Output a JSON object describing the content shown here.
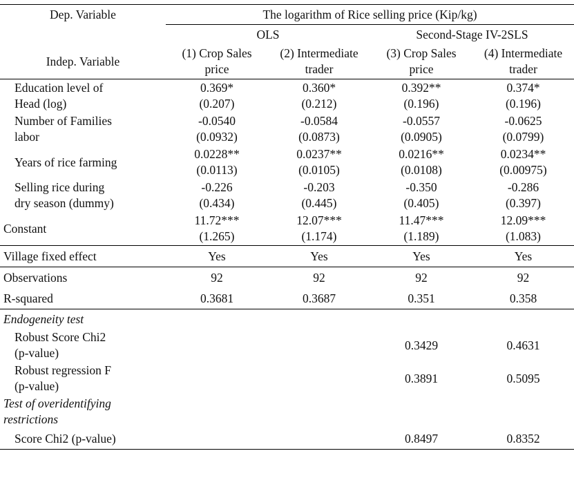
{
  "header": {
    "dep_label": "Dep. Variable",
    "dep_value": "The logarithm of Rice selling price (Kip/kg)",
    "group_ols": "OLS",
    "group_iv": "Second-Stage IV-2SLS",
    "indep_label": "Indep. Variable",
    "columns": [
      {
        "line1": "(1) Crop Sales",
        "line2": "price"
      },
      {
        "line1": "(2) Intermediate",
        "line2": "trader"
      },
      {
        "line1": "(3) Crop Sales",
        "line2": "price"
      },
      {
        "line1": "(4) Intermediate",
        "line2": "trader"
      }
    ]
  },
  "rows": [
    {
      "label1": "Education level of",
      "label2": "Head (log)",
      "coef": [
        "0.369*",
        "0.360*",
        "0.392**",
        "0.374*"
      ],
      "se": [
        "(0.207)",
        "(0.212)",
        "(0.196)",
        "(0.196)"
      ]
    },
    {
      "label1": "Number of Families",
      "label2": "labor",
      "coef": [
        "-0.0540",
        "-0.0584",
        "-0.0557",
        "-0.0625"
      ],
      "se": [
        "(0.0932)",
        "(0.0873)",
        "(0.0905)",
        "(0.0799)"
      ]
    },
    {
      "label1": "Years of rice farming",
      "label2": "",
      "coef": [
        "0.0228**",
        "0.0237**",
        "0.0216**",
        "0.0234**"
      ],
      "se": [
        "(0.0113)",
        "(0.0105)",
        "(0.0108)",
        "(0.00975)"
      ]
    },
    {
      "label1": "Selling rice during",
      "label2": "dry season (dummy)",
      "coef": [
        "-0.226",
        "-0.203",
        "-0.350",
        "-0.286"
      ],
      "se": [
        "(0.434)",
        "(0.445)",
        "(0.405)",
        "(0.397)"
      ]
    },
    {
      "label1": "Constant",
      "label2": "",
      "coef": [
        "11.72***",
        "12.07***",
        "11.47***",
        "12.09***"
      ],
      "se": [
        "(1.265)",
        "(1.174)",
        "(1.189)",
        "(1.083)"
      ]
    }
  ],
  "village": {
    "label": "Village fixed effect",
    "values": [
      "Yes",
      "Yes",
      "Yes",
      "Yes"
    ]
  },
  "observations": {
    "label": "Observations",
    "values": [
      "92",
      "92",
      "92",
      "92"
    ]
  },
  "rsquared": {
    "label": "R-squared",
    "values": [
      "0.3681",
      "0.3687",
      "0.351",
      "0.358"
    ]
  },
  "endogeneity": {
    "title": "Endogeneity test",
    "score_label1": "Robust Score Chi2",
    "score_label2": "(p-value)",
    "score_values": [
      "0.3429",
      "0.4631"
    ],
    "reg_label1": "Robust regression F",
    "reg_label2": "(p-value)",
    "reg_values": [
      "0.3891",
      "0.5095"
    ]
  },
  "overid": {
    "title1": "Test of overidentifying",
    "title2": "restrictions",
    "score_label": "Score Chi2 (p-value)",
    "score_values": [
      "0.8497",
      "0.8352"
    ]
  }
}
